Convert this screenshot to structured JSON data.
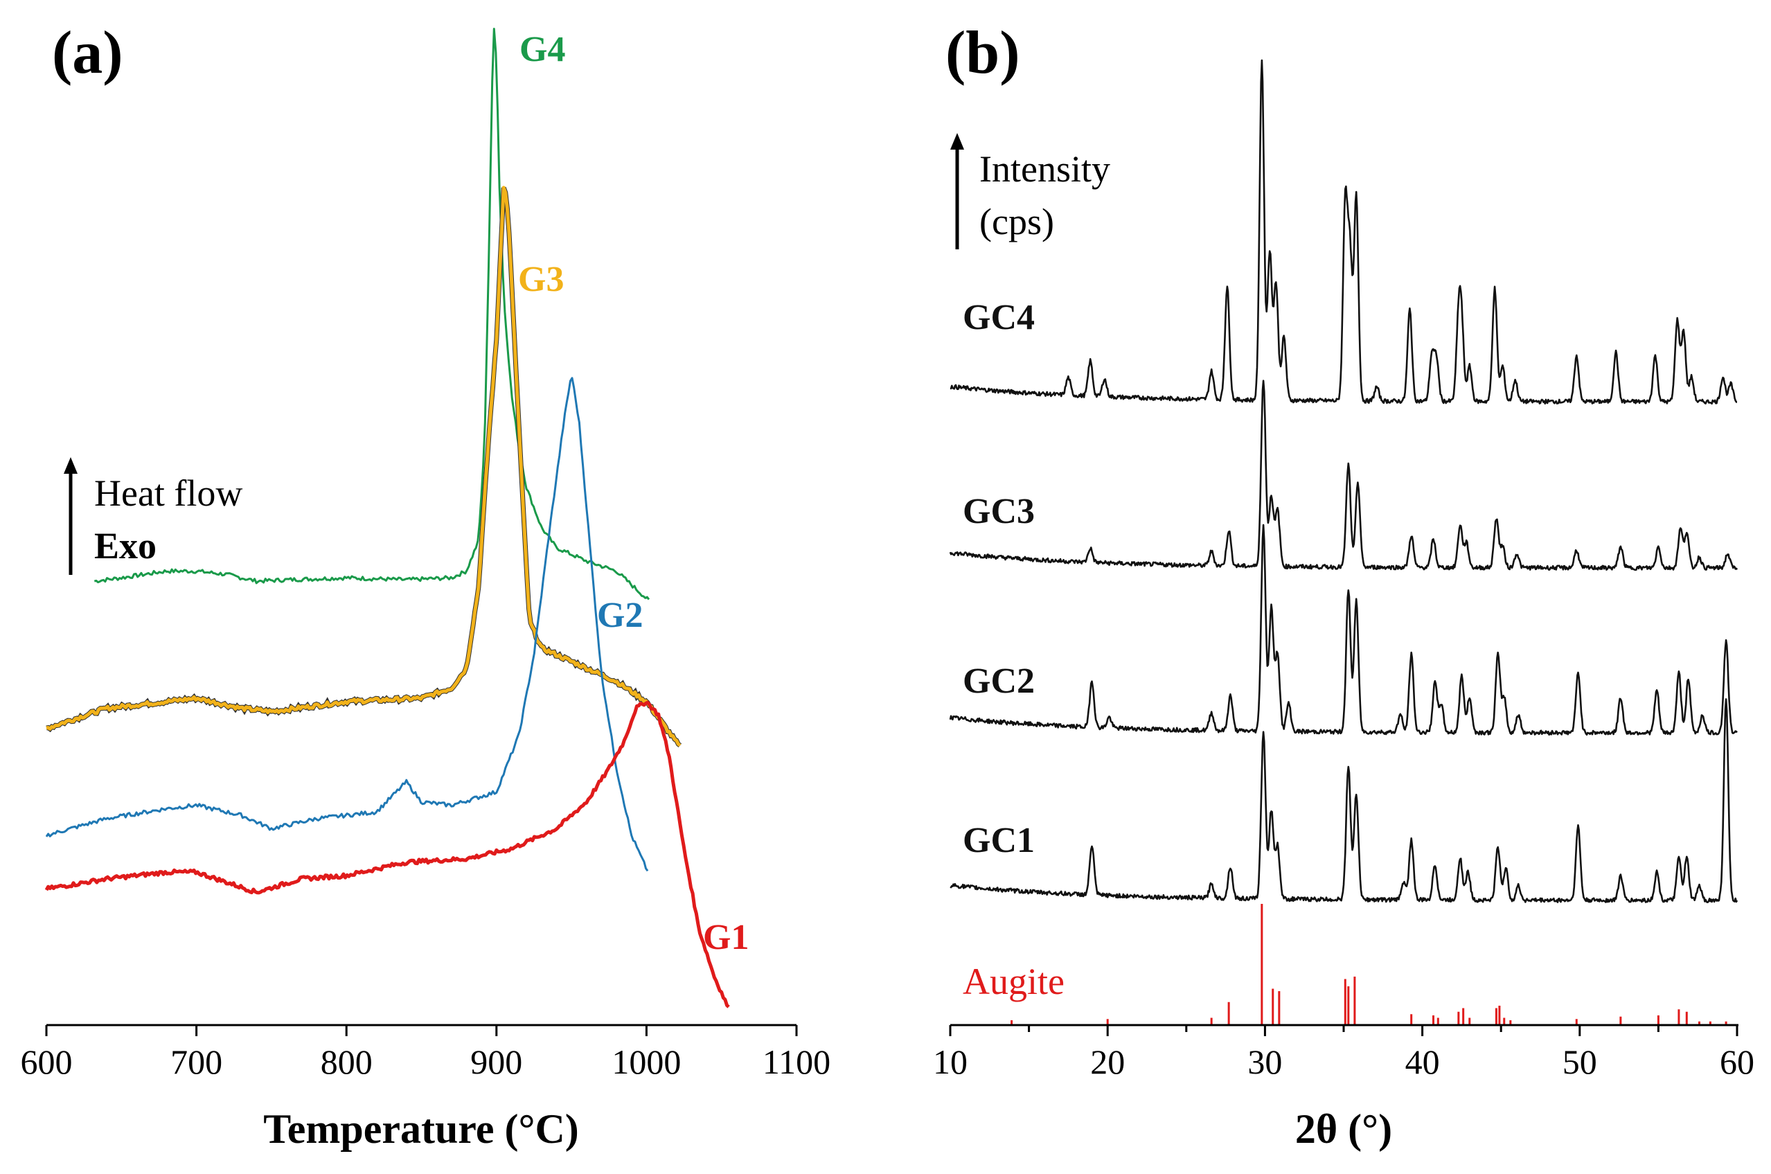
{
  "chart_data": [
    {
      "panel": "(a)",
      "type": "line",
      "xlabel": "Temperature (°C)",
      "ylabel": "",
      "xlim": [
        600,
        1100
      ],
      "xticks": [
        "600",
        "700",
        "800",
        "900",
        "1000",
        "1100"
      ],
      "indicator": {
        "line1": "Heat flow",
        "line2": "Exo"
      },
      "series": [
        {
          "name": "G4",
          "color": "#1a9a4a",
          "points": [
            [
              632,
              0.56
            ],
            [
              650,
              0.565
            ],
            [
              680,
              0.575
            ],
            [
              700,
              0.575
            ],
            [
              720,
              0.57
            ],
            [
              740,
              0.56
            ],
            [
              760,
              0.562
            ],
            [
              800,
              0.565
            ],
            [
              840,
              0.562
            ],
            [
              870,
              0.565
            ],
            [
              880,
              0.575
            ],
            [
              888,
              0.62
            ],
            [
              892,
              0.76
            ],
            [
              895,
              1.05
            ],
            [
              898,
              1.4
            ],
            [
              900,
              1.34
            ],
            [
              902,
              1.15
            ],
            [
              905,
              0.98
            ],
            [
              910,
              0.84
            ],
            [
              915,
              0.76
            ],
            [
              920,
              0.7
            ],
            [
              930,
              0.64
            ],
            [
              940,
              0.61
            ],
            [
              960,
              0.59
            ],
            [
              980,
              0.575
            ],
            [
              1002,
              0.53
            ]
          ]
        },
        {
          "name": "G3",
          "color": "#f2b21a",
          "points": [
            [
              600,
              0.34
            ],
            [
              640,
              0.37
            ],
            [
              680,
              0.38
            ],
            [
              700,
              0.385
            ],
            [
              730,
              0.37
            ],
            [
              750,
              0.365
            ],
            [
              800,
              0.38
            ],
            [
              850,
              0.385
            ],
            [
              870,
              0.4
            ],
            [
              880,
              0.43
            ],
            [
              888,
              0.55
            ],
            [
              895,
              0.78
            ],
            [
              900,
              0.92
            ],
            [
              905,
              1.16
            ],
            [
              908,
              1.1
            ],
            [
              912,
              0.92
            ],
            [
              918,
              0.66
            ],
            [
              922,
              0.5
            ],
            [
              930,
              0.46
            ],
            [
              950,
              0.44
            ],
            [
              980,
              0.41
            ],
            [
              1000,
              0.38
            ],
            [
              1023,
              0.31
            ]
          ]
        },
        {
          "name": "G2",
          "color": "#1f78b4",
          "points": [
            [
              600,
              0.18
            ],
            [
              640,
              0.205
            ],
            [
              680,
              0.22
            ],
            [
              700,
              0.225
            ],
            [
              730,
              0.21
            ],
            [
              750,
              0.19
            ],
            [
              780,
              0.205
            ],
            [
              820,
              0.215
            ],
            [
              840,
              0.26
            ],
            [
              850,
              0.23
            ],
            [
              870,
              0.225
            ],
            [
              900,
              0.245
            ],
            [
              915,
              0.33
            ],
            [
              925,
              0.45
            ],
            [
              935,
              0.63
            ],
            [
              945,
              0.8
            ],
            [
              950,
              0.87
            ],
            [
              955,
              0.8
            ],
            [
              962,
              0.62
            ],
            [
              970,
              0.42
            ],
            [
              980,
              0.28
            ],
            [
              990,
              0.18
            ],
            [
              1002,
              0.12
            ]
          ]
        },
        {
          "name": "G1",
          "color": "#e01b1b",
          "points": [
            [
              600,
              0.1
            ],
            [
              640,
              0.115
            ],
            [
              680,
              0.125
            ],
            [
              700,
              0.125
            ],
            [
              720,
              0.11
            ],
            [
              740,
              0.095
            ],
            [
              770,
              0.115
            ],
            [
              800,
              0.12
            ],
            [
              840,
              0.14
            ],
            [
              880,
              0.145
            ],
            [
              910,
              0.16
            ],
            [
              940,
              0.19
            ],
            [
              960,
              0.23
            ],
            [
              975,
              0.28
            ],
            [
              985,
              0.32
            ],
            [
              993,
              0.37
            ],
            [
              1000,
              0.38
            ],
            [
              1008,
              0.36
            ],
            [
              1015,
              0.3
            ],
            [
              1025,
              0.16
            ],
            [
              1035,
              0.04
            ],
            [
              1045,
              -0.03
            ],
            [
              1055,
              -0.08
            ]
          ]
        }
      ]
    },
    {
      "panel": "(b)",
      "type": "line",
      "xlabel": "2θ (°)",
      "ylabel": "",
      "xlim": [
        10,
        60
      ],
      "xticks": [
        "10",
        "20",
        "30",
        "40",
        "50",
        "60"
      ],
      "indicator": {
        "line1": "Intensity",
        "line2": "(cps)"
      },
      "reference": {
        "name": "Augite",
        "color": "#e01b1b",
        "lines": [
          [
            13.9,
            0.04
          ],
          [
            20.0,
            0.05
          ],
          [
            26.6,
            0.06
          ],
          [
            27.7,
            0.19
          ],
          [
            29.8,
            1.0
          ],
          [
            30.5,
            0.3
          ],
          [
            30.9,
            0.28
          ],
          [
            35.1,
            0.38
          ],
          [
            35.3,
            0.32
          ],
          [
            35.7,
            0.4
          ],
          [
            39.3,
            0.09
          ],
          [
            40.7,
            0.08
          ],
          [
            41.0,
            0.06
          ],
          [
            42.3,
            0.11
          ],
          [
            42.6,
            0.14
          ],
          [
            43.0,
            0.06
          ],
          [
            44.7,
            0.14
          ],
          [
            44.9,
            0.16
          ],
          [
            45.2,
            0.06
          ],
          [
            45.6,
            0.04
          ],
          [
            49.8,
            0.05
          ],
          [
            52.6,
            0.07
          ],
          [
            55.0,
            0.08
          ],
          [
            56.3,
            0.13
          ],
          [
            56.8,
            0.11
          ],
          [
            57.6,
            0.03
          ],
          [
            58.3,
            0.03
          ],
          [
            59.3,
            0.03
          ]
        ]
      },
      "series": [
        {
          "name": "GC4",
          "color": "#111111",
          "scale": 1.0,
          "peaks": [
            [
              17.5,
              0.05
            ],
            [
              18.9,
              0.1
            ],
            [
              19.8,
              0.05
            ],
            [
              26.6,
              0.08
            ],
            [
              27.6,
              0.32
            ],
            [
              29.8,
              0.96
            ],
            [
              30.3,
              0.42
            ],
            [
              30.7,
              0.33
            ],
            [
              31.2,
              0.18
            ],
            [
              35.1,
              0.56
            ],
            [
              35.4,
              0.41
            ],
            [
              35.8,
              0.58
            ],
            [
              37.1,
              0.04
            ],
            [
              39.2,
              0.26
            ],
            [
              40.6,
              0.13
            ],
            [
              40.9,
              0.12
            ],
            [
              42.3,
              0.22
            ],
            [
              42.5,
              0.2
            ],
            [
              43.0,
              0.1
            ],
            [
              44.6,
              0.32
            ],
            [
              45.1,
              0.1
            ],
            [
              45.9,
              0.06
            ],
            [
              49.8,
              0.13
            ],
            [
              52.3,
              0.14
            ],
            [
              54.8,
              0.13
            ],
            [
              56.2,
              0.23
            ],
            [
              56.6,
              0.2
            ],
            [
              57.1,
              0.07
            ],
            [
              59.1,
              0.07
            ],
            [
              59.6,
              0.05
            ]
          ]
        },
        {
          "name": "GC3",
          "color": "#111111",
          "scale": 1.0,
          "peaks": [
            [
              18.9,
              0.04
            ],
            [
              26.6,
              0.04
            ],
            [
              27.7,
              0.1
            ],
            [
              29.9,
              0.53
            ],
            [
              30.4,
              0.2
            ],
            [
              30.8,
              0.16
            ],
            [
              35.3,
              0.29
            ],
            [
              35.9,
              0.24
            ],
            [
              39.3,
              0.09
            ],
            [
              40.7,
              0.08
            ],
            [
              42.4,
              0.12
            ],
            [
              42.8,
              0.07
            ],
            [
              44.7,
              0.14
            ],
            [
              45.1,
              0.06
            ],
            [
              46.0,
              0.04
            ],
            [
              49.8,
              0.05
            ],
            [
              52.6,
              0.06
            ],
            [
              55.0,
              0.06
            ],
            [
              56.4,
              0.11
            ],
            [
              56.8,
              0.1
            ],
            [
              57.6,
              0.03
            ],
            [
              59.4,
              0.04
            ]
          ]
        },
        {
          "name": "GC2",
          "color": "#111111",
          "scale": 1.0,
          "peaks": [
            [
              19.0,
              0.13
            ],
            [
              20.1,
              0.03
            ],
            [
              26.6,
              0.05
            ],
            [
              27.8,
              0.1
            ],
            [
              29.9,
              0.58
            ],
            [
              30.4,
              0.35
            ],
            [
              30.8,
              0.22
            ],
            [
              31.5,
              0.08
            ],
            [
              35.3,
              0.4
            ],
            [
              35.8,
              0.37
            ],
            [
              38.6,
              0.05
            ],
            [
              39.3,
              0.22
            ],
            [
              40.8,
              0.14
            ],
            [
              41.2,
              0.08
            ],
            [
              42.5,
              0.16
            ],
            [
              43.0,
              0.1
            ],
            [
              44.8,
              0.22
            ],
            [
              45.2,
              0.1
            ],
            [
              46.1,
              0.05
            ],
            [
              49.9,
              0.17
            ],
            [
              52.6,
              0.1
            ],
            [
              54.9,
              0.12
            ],
            [
              56.3,
              0.17
            ],
            [
              56.9,
              0.15
            ],
            [
              57.8,
              0.05
            ],
            [
              59.3,
              0.26
            ]
          ]
        },
        {
          "name": "GC1",
          "color": "#111111",
          "scale": 1.0,
          "peaks": [
            [
              19.0,
              0.14
            ],
            [
              26.6,
              0.04
            ],
            [
              27.8,
              0.09
            ],
            [
              29.9,
              0.47
            ],
            [
              30.4,
              0.25
            ],
            [
              30.8,
              0.15
            ],
            [
              35.3,
              0.38
            ],
            [
              35.8,
              0.3
            ],
            [
              38.8,
              0.05
            ],
            [
              39.3,
              0.17
            ],
            [
              40.8,
              0.1
            ],
            [
              42.4,
              0.12
            ],
            [
              42.9,
              0.08
            ],
            [
              44.8,
              0.15
            ],
            [
              45.3,
              0.09
            ],
            [
              46.1,
              0.04
            ],
            [
              49.9,
              0.21
            ],
            [
              52.6,
              0.07
            ],
            [
              54.9,
              0.08
            ],
            [
              56.3,
              0.12
            ],
            [
              56.8,
              0.12
            ],
            [
              57.6,
              0.04
            ],
            [
              59.3,
              0.57
            ]
          ]
        }
      ]
    }
  ]
}
